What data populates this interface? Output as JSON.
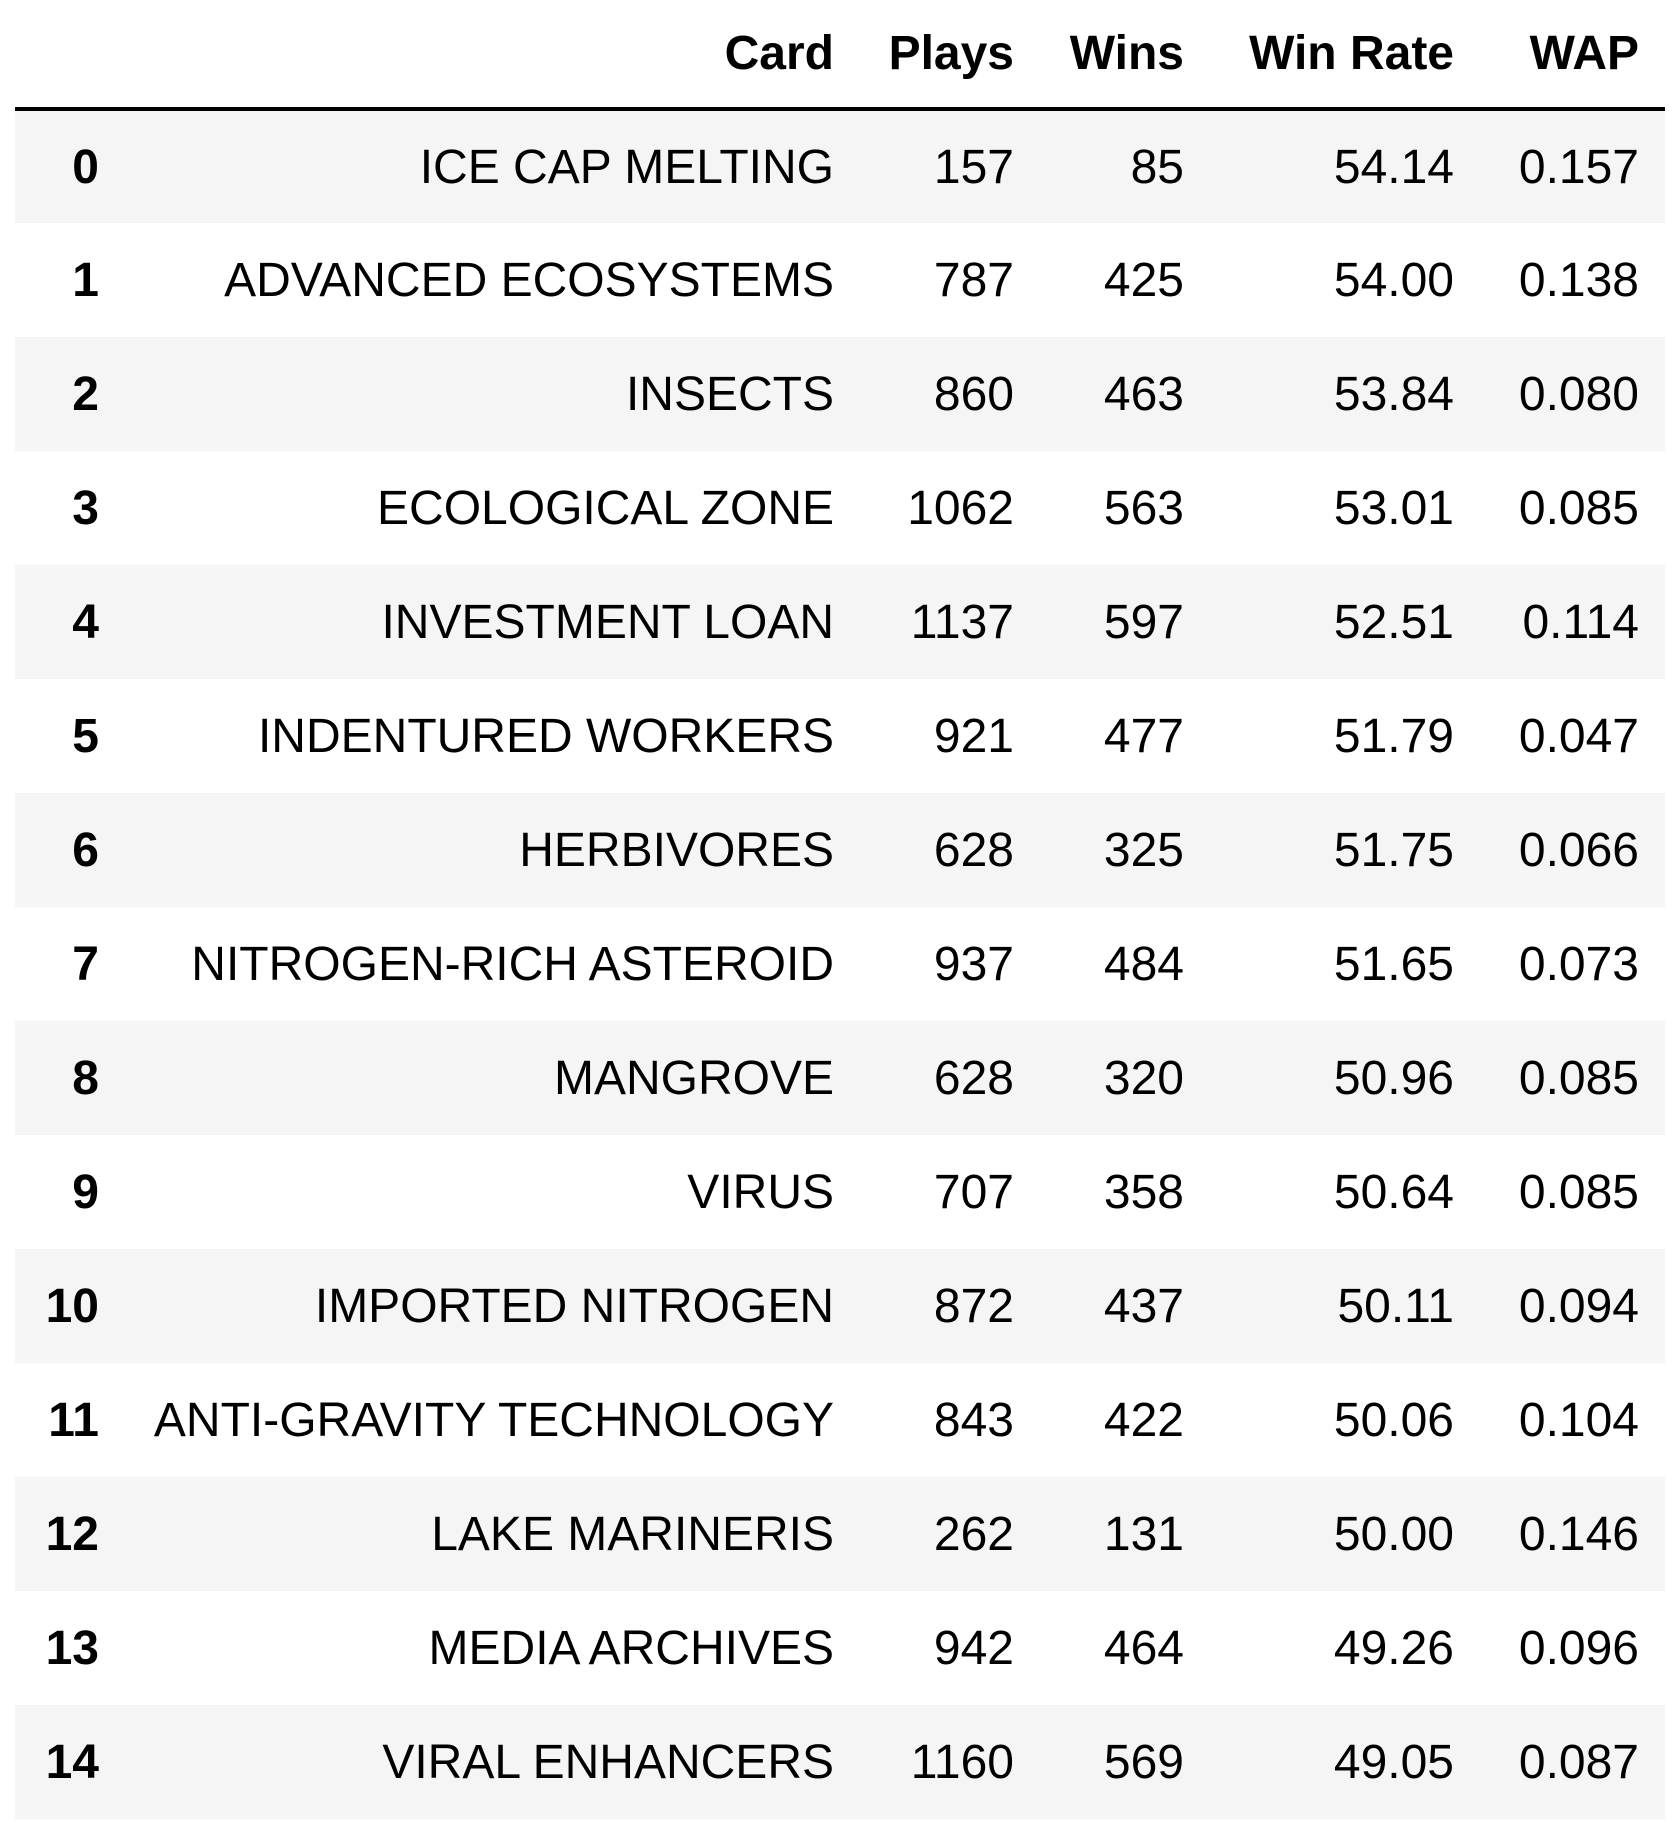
{
  "table": {
    "columns": [
      "",
      "Card",
      "Plays",
      "Wins",
      "Win Rate",
      "WAP"
    ],
    "rows": [
      {
        "index": "0",
        "card": "ICE CAP MELTING",
        "plays": "157",
        "wins": "85",
        "win_rate": "54.14",
        "wap": "0.157"
      },
      {
        "index": "1",
        "card": "ADVANCED ECOSYSTEMS",
        "plays": "787",
        "wins": "425",
        "win_rate": "54.00",
        "wap": "0.138"
      },
      {
        "index": "2",
        "card": "INSECTS",
        "plays": "860",
        "wins": "463",
        "win_rate": "53.84",
        "wap": "0.080"
      },
      {
        "index": "3",
        "card": "ECOLOGICAL ZONE",
        "plays": "1062",
        "wins": "563",
        "win_rate": "53.01",
        "wap": "0.085"
      },
      {
        "index": "4",
        "card": "INVESTMENT LOAN",
        "plays": "1137",
        "wins": "597",
        "win_rate": "52.51",
        "wap": "0.114"
      },
      {
        "index": "5",
        "card": "INDENTURED WORKERS",
        "plays": "921",
        "wins": "477",
        "win_rate": "51.79",
        "wap": "0.047"
      },
      {
        "index": "6",
        "card": "HERBIVORES",
        "plays": "628",
        "wins": "325",
        "win_rate": "51.75",
        "wap": "0.066"
      },
      {
        "index": "7",
        "card": "NITROGEN-RICH ASTEROID",
        "plays": "937",
        "wins": "484",
        "win_rate": "51.65",
        "wap": "0.073"
      },
      {
        "index": "8",
        "card": "MANGROVE",
        "plays": "628",
        "wins": "320",
        "win_rate": "50.96",
        "wap": "0.085"
      },
      {
        "index": "9",
        "card": "VIRUS",
        "plays": "707",
        "wins": "358",
        "win_rate": "50.64",
        "wap": "0.085"
      },
      {
        "index": "10",
        "card": "IMPORTED NITROGEN",
        "plays": "872",
        "wins": "437",
        "win_rate": "50.11",
        "wap": "0.094"
      },
      {
        "index": "11",
        "card": "ANTI-GRAVITY TECHNOLOGY",
        "plays": "843",
        "wins": "422",
        "win_rate": "50.06",
        "wap": "0.104"
      },
      {
        "index": "12",
        "card": "LAKE MARINERIS",
        "plays": "262",
        "wins": "131",
        "win_rate": "50.00",
        "wap": "0.146"
      },
      {
        "index": "13",
        "card": "MEDIA ARCHIVES",
        "plays": "942",
        "wins": "464",
        "win_rate": "49.26",
        "wap": "0.096"
      },
      {
        "index": "14",
        "card": "VIRAL ENHANCERS",
        "plays": "1160",
        "wins": "569",
        "win_rate": "49.05",
        "wap": "0.087"
      }
    ]
  }
}
